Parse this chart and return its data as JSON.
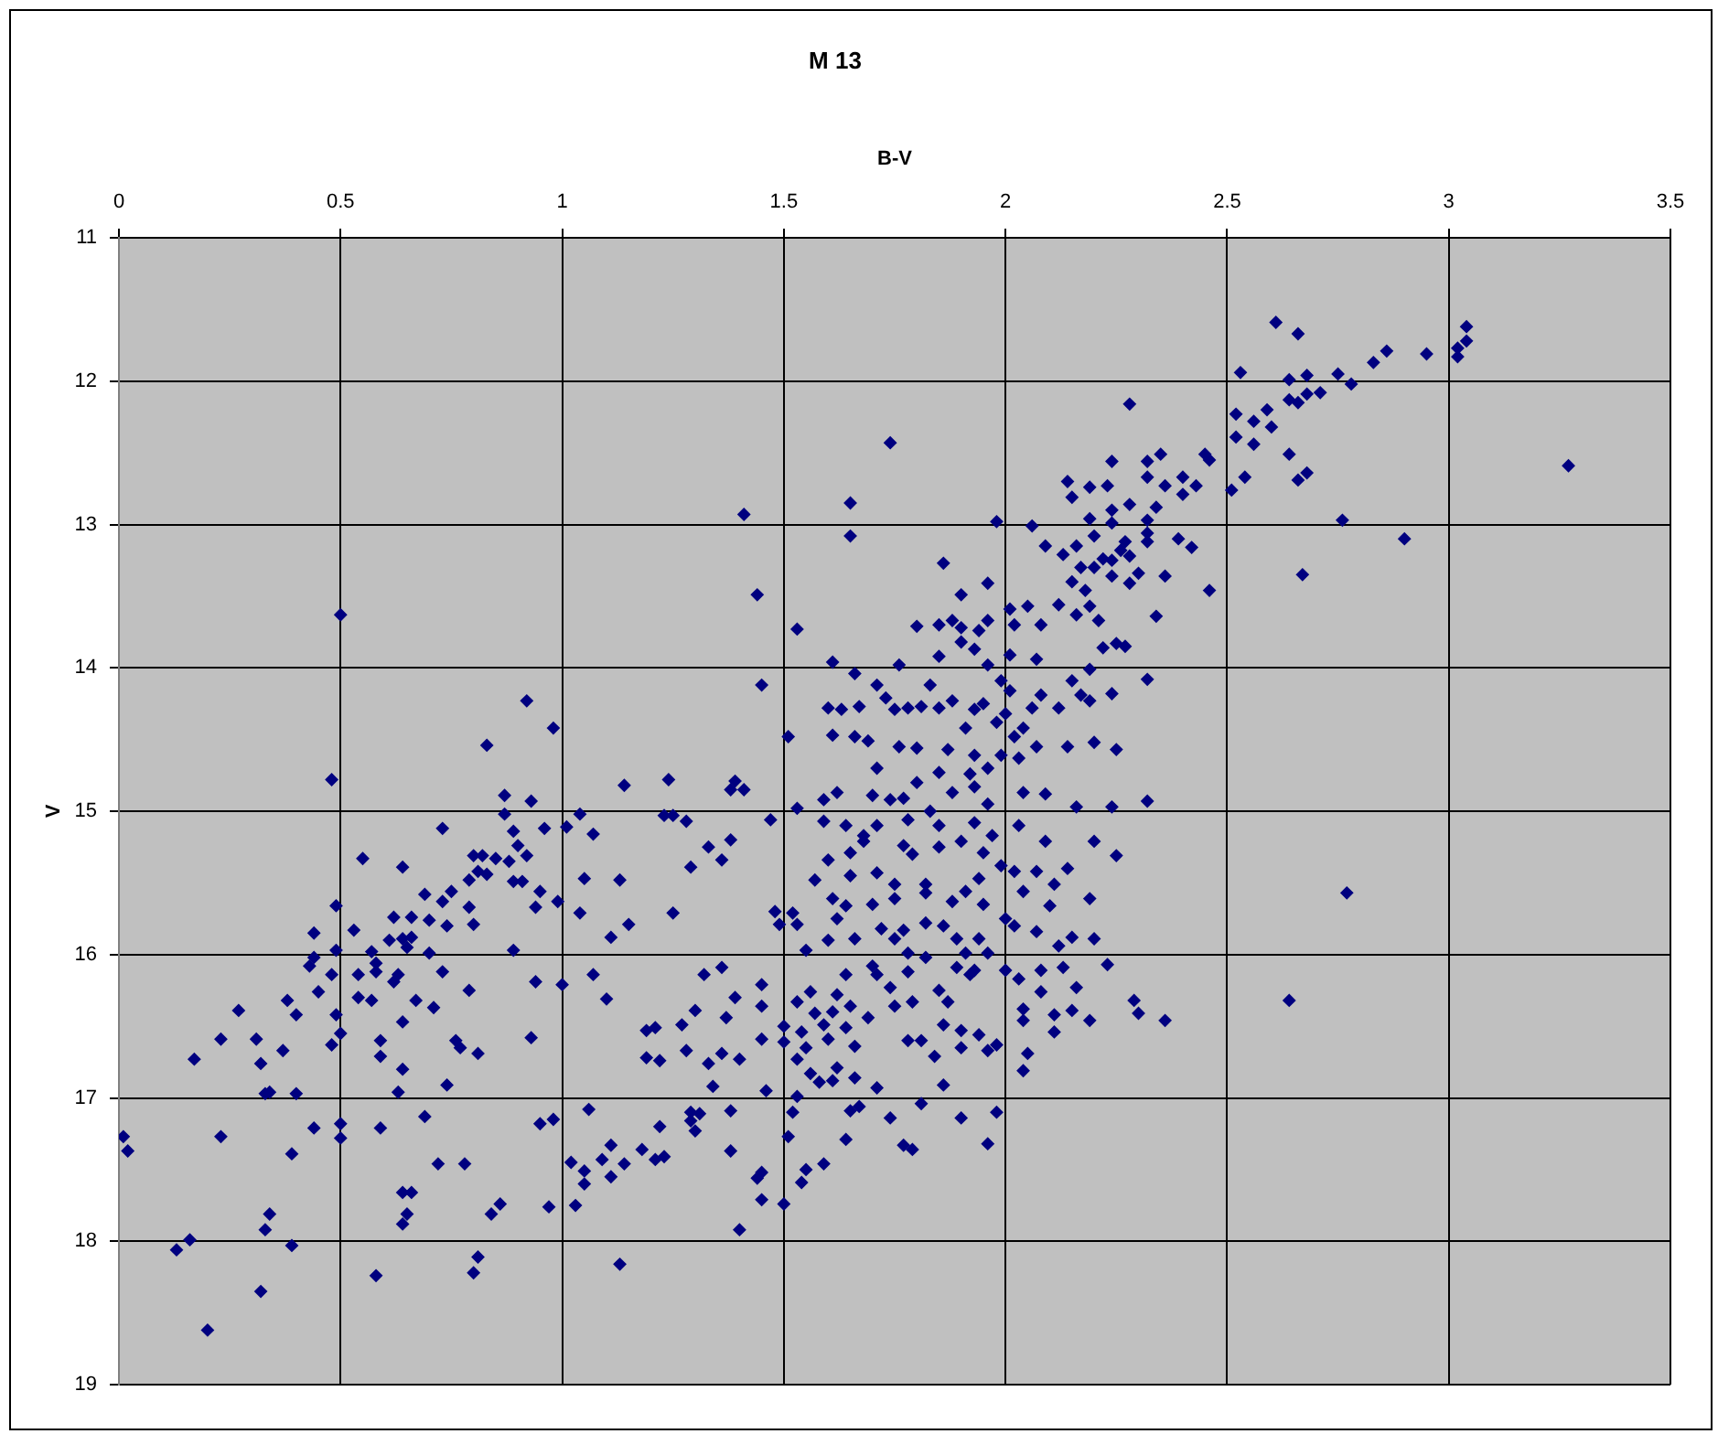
{
  "chart_data": {
    "type": "scatter",
    "title": "M 13",
    "xlabel": "B-V",
    "ylabel": "V",
    "color": "#000080",
    "marker": "diamond",
    "grid": true,
    "xlim": [
      0,
      3.5
    ],
    "ylim": [
      19,
      11
    ],
    "xticks": [
      0,
      0.5,
      1,
      1.5,
      2,
      2.5,
      3,
      3.5
    ],
    "yticks": [
      11,
      12,
      13,
      14,
      15,
      16,
      17,
      18,
      19
    ],
    "x": [
      0.01,
      0.02,
      0.13,
      0.16,
      0.2,
      0.17,
      0.23,
      0.23,
      0.27,
      0.31,
      0.32,
      0.32,
      0.33,
      0.33,
      0.34,
      0.34,
      0.37,
      0.38,
      0.39,
      0.39,
      0.4,
      0.4,
      0.43,
      0.44,
      0.44,
      0.44,
      0.45,
      0.48,
      0.48,
      0.48,
      0.49,
      0.49,
      0.49,
      0.5,
      0.5,
      0.5,
      0.5,
      0.53,
      0.54,
      0.54,
      0.55,
      0.57,
      0.57,
      0.58,
      0.58,
      0.58,
      0.59,
      0.59,
      0.59,
      0.61,
      0.62,
      0.62,
      0.63,
      0.63,
      0.64,
      0.64,
      0.64,
      0.64,
      0.64,
      0.65,
      0.64,
      0.65,
      0.66,
      0.66,
      0.66,
      0.67,
      0.69,
      0.69,
      0.7,
      0.7,
      0.71,
      0.72,
      0.73,
      0.73,
      0.73,
      0.74,
      0.74,
      0.75,
      0.76,
      0.77,
      0.78,
      0.79,
      0.79,
      0.79,
      0.8,
      0.8,
      0.8,
      0.81,
      0.81,
      0.81,
      0.82,
      0.83,
      0.83,
      0.84,
      0.85,
      0.86,
      0.87,
      0.87,
      0.88,
      0.89,
      0.89,
      0.89,
      0.9,
      0.91,
      0.92,
      0.92,
      0.93,
      0.93,
      0.94,
      0.94,
      0.95,
      0.95,
      0.96,
      0.97,
      0.98,
      0.98,
      0.99,
      1.0,
      1.01,
      1.02,
      1.03,
      1.04,
      1.04,
      1.05,
      1.05,
      1.05,
      1.06,
      1.07,
      1.07,
      1.09,
      1.1,
      1.11,
      1.11,
      1.11,
      1.13,
      1.13,
      1.14,
      1.14,
      1.15,
      1.18,
      1.19,
      1.19,
      1.21,
      1.21,
      1.22,
      1.22,
      1.23,
      1.23,
      1.24,
      1.25,
      1.25,
      1.27,
      1.28,
      1.28,
      1.29,
      1.29,
      1.29,
      1.3,
      1.3,
      1.31,
      1.32,
      1.33,
      1.33,
      1.34,
      1.36,
      1.36,
      1.36,
      1.37,
      1.38,
      1.38,
      1.38,
      1.39,
      1.38,
      1.39,
      1.4,
      1.4,
      1.41,
      1.41,
      1.44,
      1.45,
      1.45,
      1.45,
      1.45,
      1.44,
      1.45,
      1.45,
      1.46,
      1.47,
      1.48,
      1.49,
      1.5,
      1.5,
      1.5,
      1.51,
      1.51,
      1.52,
      1.52,
      1.53,
      1.53,
      1.53,
      1.53,
      1.53,
      1.53,
      1.54,
      1.54,
      1.55,
      1.55,
      1.55,
      1.56,
      1.56,
      1.57,
      1.57,
      1.58,
      1.59,
      1.59,
      1.59,
      1.59,
      1.6,
      1.6,
      1.6,
      1.61,
      1.61,
      1.61,
      1.61,
      1.6,
      1.61,
      1.62,
      1.62,
      1.62,
      1.62,
      1.63,
      1.64,
      1.64,
      1.64,
      1.64,
      1.64,
      1.65,
      1.65,
      1.65,
      1.65,
      1.65,
      1.65,
      1.66,
      1.66,
      1.66,
      1.66,
      1.66,
      1.67,
      1.67,
      1.68,
      1.68,
      1.69,
      1.69,
      1.7,
      1.7,
      1.7,
      1.71,
      1.71,
      1.71,
      1.71,
      1.71,
      1.71,
      1.72,
      1.73,
      1.74,
      1.74,
      1.74,
      1.74,
      1.75,
      1.75,
      1.75,
      1.75,
      1.75,
      1.76,
      1.76,
      1.77,
      1.77,
      1.77,
      1.77,
      1.78,
      1.78,
      1.78,
      1.78,
      1.78,
      1.79,
      1.79,
      1.79,
      1.8,
      1.8,
      1.8,
      1.81,
      1.81,
      1.81,
      1.82,
      1.82,
      1.82,
      1.82,
      1.83,
      1.83,
      1.84,
      1.85,
      1.85,
      1.85,
      1.85,
      1.85,
      1.85,
      1.85,
      1.86,
      1.86,
      1.86,
      1.86,
      1.87,
      1.87,
      1.88,
      1.88,
      1.88,
      1.88,
      1.89,
      1.89,
      1.9,
      1.9,
      1.9,
      1.9,
      1.9,
      1.9,
      1.9,
      1.91,
      1.91,
      1.91,
      1.92,
      1.92,
      1.93,
      1.93,
      1.93,
      1.93,
      1.93,
      1.93,
      1.94,
      1.94,
      1.94,
      1.94,
      1.95,
      1.95,
      1.95,
      1.96,
      1.96,
      1.96,
      1.96,
      1.96,
      1.96,
      1.96,
      1.96,
      1.97,
      1.98,
      1.98,
      1.98,
      1.98,
      1.99,
      1.99,
      1.99,
      2.0,
      2.0,
      2.0,
      2.01,
      2.01,
      2.01,
      2.02,
      2.02,
      2.02,
      2.02,
      2.03,
      2.03,
      2.03,
      2.04,
      2.04,
      2.04,
      2.04,
      2.04,
      2.04,
      2.05,
      2.05,
      2.06,
      2.06,
      2.07,
      2.07,
      2.07,
      2.07,
      2.08,
      2.08,
      2.08,
      2.08,
      2.09,
      2.09,
      2.09,
      2.1,
      2.11,
      2.11,
      2.11,
      2.12,
      2.12,
      2.12,
      2.13,
      2.13,
      2.14,
      2.14,
      2.14,
      2.15,
      2.15,
      2.15,
      2.15,
      2.15,
      2.16,
      2.16,
      2.16,
      2.16,
      2.17,
      2.17,
      2.18,
      2.19,
      2.19,
      2.19,
      2.19,
      2.19,
      2.19,
      2.19,
      2.2,
      2.2,
      2.2,
      2.2,
      2.2,
      2.21,
      2.22,
      2.22,
      2.23,
      2.23,
      2.24,
      2.24,
      2.24,
      2.24,
      2.24,
      2.24,
      2.25,
      2.24,
      2.25,
      2.25,
      2.26,
      2.27,
      2.27,
      2.28,
      2.28,
      2.28,
      2.28,
      2.29,
      2.3,
      2.3,
      2.32,
      2.32,
      2.32,
      2.32,
      2.32,
      2.32,
      2.32,
      2.34,
      2.34,
      2.35,
      2.36,
      2.36,
      2.36,
      2.39,
      2.4,
      2.4,
      2.42,
      2.43,
      2.45,
      2.46,
      2.46,
      2.52,
      2.52,
      2.51,
      2.53,
      2.54,
      2.56,
      2.56,
      2.59,
      2.6,
      2.61,
      2.64,
      2.64,
      2.64,
      2.64,
      2.66,
      2.66,
      2.66,
      2.67,
      2.68,
      2.68,
      2.68,
      2.71,
      2.75,
      2.76,
      2.77,
      2.78,
      2.83,
      2.86,
      2.9,
      2.95,
      3.02,
      3.02,
      3.04,
      3.04,
      3.27
    ],
    "values": [
      17.27,
      17.37,
      18.06,
      17.99,
      18.62,
      16.73,
      16.59,
      17.27,
      16.39,
      16.59,
      16.76,
      18.35,
      17.92,
      16.97,
      16.96,
      17.81,
      16.67,
      16.32,
      18.03,
      17.39,
      16.42,
      16.97,
      16.08,
      16.02,
      15.85,
      17.21,
      16.26,
      16.14,
      14.78,
      16.63,
      15.66,
      15.97,
      16.42,
      16.55,
      17.18,
      17.28,
      13.63,
      15.83,
      16.14,
      16.3,
      15.33,
      15.98,
      16.32,
      16.12,
      16.06,
      18.24,
      16.6,
      16.71,
      17.21,
      15.9,
      16.19,
      15.74,
      16.14,
      16.96,
      15.39,
      15.89,
      16.47,
      16.8,
      17.66,
      17.81,
      17.88,
      15.95,
      15.74,
      15.88,
      17.66,
      16.32,
      15.58,
      17.13,
      15.76,
      15.99,
      16.37,
      17.46,
      15.12,
      15.63,
      16.12,
      15.8,
      16.91,
      15.56,
      16.6,
      16.65,
      17.46,
      15.48,
      15.67,
      16.25,
      15.31,
      15.79,
      18.22,
      15.42,
      16.69,
      18.11,
      15.31,
      14.54,
      15.44,
      17.81,
      15.33,
      17.74,
      14.89,
      15.02,
      15.35,
      15.14,
      15.49,
      15.97,
      15.24,
      15.49,
      14.23,
      15.31,
      14.93,
      16.58,
      16.19,
      15.67,
      15.56,
      17.18,
      15.12,
      17.76,
      14.42,
      17.15,
      15.63,
      16.21,
      15.11,
      17.45,
      17.75,
      15.02,
      15.71,
      17.51,
      17.6,
      15.47,
      17.08,
      15.16,
      16.14,
      17.43,
      16.31,
      15.88,
      17.33,
      17.55,
      15.48,
      18.16,
      14.82,
      17.46,
      15.79,
      17.36,
      16.72,
      16.53,
      16.51,
      17.43,
      17.2,
      16.74,
      15.03,
      17.41,
      14.78,
      15.03,
      15.71,
      16.49,
      15.07,
      16.67,
      15.39,
      17.16,
      17.1,
      16.39,
      17.23,
      17.11,
      16.14,
      15.25,
      16.76,
      16.92,
      15.34,
      16.09,
      16.69,
      16.44,
      15.2,
      17.37,
      17.09,
      14.79,
      14.85,
      16.3,
      16.73,
      17.92,
      14.85,
      12.93,
      13.49,
      14.12,
      16.21,
      16.36,
      17.52,
      17.56,
      17.71,
      16.59,
      16.95,
      15.06,
      15.7,
      15.79,
      16.5,
      16.61,
      17.74,
      14.48,
      17.27,
      15.71,
      17.1,
      13.73,
      14.98,
      15.79,
      16.33,
      16.73,
      16.99,
      16.54,
      17.59,
      15.97,
      16.65,
      17.5,
      16.26,
      16.83,
      16.41,
      15.48,
      16.89,
      16.49,
      17.46,
      14.92,
      15.07,
      15.34,
      15.9,
      14.28,
      13.96,
      14.47,
      15.61,
      16.4,
      16.59,
      16.88,
      14.87,
      15.75,
      16.28,
      16.79,
      14.29,
      15.1,
      17.29,
      15.66,
      16.14,
      16.51,
      12.85,
      13.08,
      15.45,
      15.29,
      16.36,
      17.09,
      14.04,
      14.48,
      16.64,
      15.89,
      16.86,
      14.27,
      17.06,
      15.17,
      15.21,
      14.51,
      16.44,
      14.89,
      15.65,
      16.08,
      14.7,
      15.1,
      16.14,
      14.12,
      15.43,
      16.93,
      15.82,
      14.21,
      12.43,
      14.92,
      16.23,
      17.14,
      14.29,
      15.51,
      15.61,
      15.89,
      16.36,
      13.98,
      14.55,
      15.24,
      14.91,
      15.83,
      17.33,
      14.28,
      15.06,
      15.99,
      16.12,
      16.6,
      15.3,
      16.33,
      17.36,
      13.71,
      14.56,
      14.8,
      14.27,
      16.6,
      17.04,
      15.51,
      15.57,
      15.78,
      16.02,
      14.12,
      15.0,
      16.71,
      13.7,
      13.92,
      14.28,
      14.73,
      15.1,
      15.25,
      16.25,
      13.27,
      16.49,
      16.91,
      15.8,
      14.57,
      16.33,
      13.67,
      14.87,
      15.63,
      14.23,
      15.89,
      16.09,
      13.49,
      13.82,
      15.21,
      16.53,
      16.65,
      17.14,
      13.72,
      14.42,
      15.56,
      15.99,
      14.74,
      16.14,
      13.87,
      14.29,
      14.61,
      14.83,
      15.08,
      16.11,
      13.74,
      15.47,
      15.89,
      16.56,
      14.25,
      15.29,
      15.65,
      13.67,
      13.41,
      13.98,
      14.7,
      14.95,
      15.99,
      16.67,
      17.32,
      15.17,
      12.98,
      16.63,
      17.1,
      14.38,
      14.09,
      14.61,
      15.38,
      14.32,
      15.75,
      16.11,
      13.59,
      13.91,
      14.16,
      13.7,
      14.48,
      15.42,
      15.8,
      14.63,
      15.1,
      16.17,
      14.87,
      14.42,
      15.56,
      16.38,
      16.46,
      16.81,
      16.69,
      13.57,
      13.01,
      14.28,
      13.94,
      14.55,
      15.42,
      15.84,
      13.7,
      14.19,
      16.11,
      16.26,
      13.15,
      15.21,
      14.88,
      15.66,
      15.51,
      16.42,
      16.54,
      13.56,
      14.28,
      15.94,
      13.21,
      16.09,
      12.7,
      15.4,
      14.55,
      12.81,
      13.4,
      14.09,
      15.88,
      16.39,
      13.15,
      14.97,
      13.63,
      16.23,
      13.3,
      14.19,
      13.46,
      13.57,
      12.74,
      12.96,
      14.01,
      14.23,
      15.61,
      16.46,
      13.08,
      13.3,
      15.21,
      15.89,
      14.52,
      13.67,
      13.24,
      13.86,
      12.73,
      16.07,
      12.56,
      12.9,
      12.99,
      13.25,
      13.36,
      14.18,
      14.57,
      14.97,
      15.31,
      13.83,
      13.18,
      13.12,
      13.85,
      12.86,
      12.16,
      13.22,
      13.41,
      16.32,
      13.34,
      16.41,
      12.56,
      12.67,
      12.97,
      13.06,
      13.12,
      14.08,
      14.93,
      12.88,
      13.64,
      12.51,
      12.73,
      13.36,
      16.46,
      13.1,
      12.67,
      12.79,
      13.16,
      12.73,
      12.51,
      12.55,
      13.46,
      12.23,
      12.39,
      12.76,
      11.94,
      12.67,
      12.28,
      12.44,
      12.2,
      12.32,
      11.59,
      11.99,
      12.13,
      12.51,
      16.32,
      11.67,
      12.15,
      12.69,
      13.35,
      11.96,
      12.09,
      12.64,
      12.08,
      11.95,
      12.97,
      15.57,
      12.02,
      11.87,
      11.79,
      13.1,
      11.81,
      11.77,
      11.83,
      11.62,
      11.72,
      12.59
    ]
  }
}
